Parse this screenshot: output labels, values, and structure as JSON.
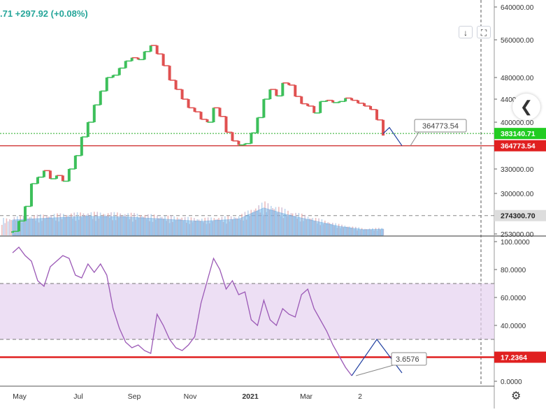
{
  "header": {
    "price_change": ".71  +297.92 (+0.08%)"
  },
  "toolbar": {
    "download_icon": "download-arrow-icon",
    "fullscreen_icon": "fullscreen-icon",
    "download_glyph": "↓",
    "fullscreen_glyph": "⛶"
  },
  "side_nav": {
    "icon": "chevron-left-icon",
    "glyph": "❮"
  },
  "footer": {
    "settings_icon": "gear-icon",
    "settings_glyph": "⚙"
  },
  "chart_data": [
    {
      "type": "line",
      "panel": "price",
      "price_axis_ticks": [
        "640000.00",
        "560000.00",
        "480000.00",
        "440000.00",
        "400000.00",
        "330000.00",
        "300000.00",
        "253000.00"
      ],
      "price_axis_tick_values": [
        640000,
        560000,
        480000,
        440000,
        400000,
        330000,
        300000,
        253000
      ],
      "time_axis_ticks": [
        "May",
        "Jul",
        "Sep",
        "Nov",
        "2021",
        "Mar",
        "2"
      ],
      "price_labels": [
        {
          "text": "383140.71",
          "value": 383140.71,
          "color": "#22cc22"
        },
        {
          "text": "364773.54",
          "value": 364773.54,
          "color": "#e02020"
        },
        {
          "text": "274300.70",
          "value": 274300.7,
          "color": "#dddddd"
        }
      ],
      "callout": {
        "text": "364773.54"
      },
      "horizontal_lines": [
        {
          "value": 383140.71,
          "style": "dotted",
          "color": "#22aa22"
        },
        {
          "value": 364773.54,
          "style": "solid",
          "color": "#cc2222"
        },
        {
          "value": 274300.7,
          "style": "dashed",
          "color": "#888888"
        }
      ],
      "candles": [
        {
          "t": 0,
          "v": 256000
        },
        {
          "t": 1,
          "v": 268000
        },
        {
          "t": 2,
          "v": 285000
        },
        {
          "t": 3,
          "v": 312000
        },
        {
          "t": 4,
          "v": 320000
        },
        {
          "t": 5,
          "v": 328000
        },
        {
          "t": 6,
          "v": 318000
        },
        {
          "t": 7,
          "v": 322000
        },
        {
          "t": 8,
          "v": 315000
        },
        {
          "t": 9,
          "v": 330000
        },
        {
          "t": 10,
          "v": 350000
        },
        {
          "t": 11,
          "v": 378000
        },
        {
          "t": 12,
          "v": 400000
        },
        {
          "t": 13,
          "v": 430000
        },
        {
          "t": 14,
          "v": 455000
        },
        {
          "t": 15,
          "v": 480000
        },
        {
          "t": 16,
          "v": 485000
        },
        {
          "t": 17,
          "v": 500000
        },
        {
          "t": 18,
          "v": 515000
        },
        {
          "t": 19,
          "v": 522000
        },
        {
          "t": 20,
          "v": 518000
        },
        {
          "t": 21,
          "v": 535000
        },
        {
          "t": 22,
          "v": 548000
        },
        {
          "t": 23,
          "v": 530000
        },
        {
          "t": 24,
          "v": 505000
        },
        {
          "t": 25,
          "v": 475000
        },
        {
          "t": 26,
          "v": 458000
        },
        {
          "t": 27,
          "v": 440000
        },
        {
          "t": 28,
          "v": 425000
        },
        {
          "t": 29,
          "v": 418000
        },
        {
          "t": 30,
          "v": 405000
        },
        {
          "t": 31,
          "v": 400000
        },
        {
          "t": 32,
          "v": 425000
        },
        {
          "t": 33,
          "v": 410000
        },
        {
          "t": 34,
          "v": 385000
        },
        {
          "t": 35,
          "v": 372000
        },
        {
          "t": 36,
          "v": 366000
        },
        {
          "t": 37,
          "v": 368000
        },
        {
          "t": 38,
          "v": 384000
        },
        {
          "t": 39,
          "v": 408000
        },
        {
          "t": 40,
          "v": 440000
        },
        {
          "t": 41,
          "v": 458000
        },
        {
          "t": 42,
          "v": 446000
        },
        {
          "t": 43,
          "v": 470000
        },
        {
          "t": 44,
          "v": 466000
        },
        {
          "t": 45,
          "v": 445000
        },
        {
          "t": 46,
          "v": 432000
        },
        {
          "t": 47,
          "v": 428000
        },
        {
          "t": 48,
          "v": 416000
        },
        {
          "t": 49,
          "v": 436000
        },
        {
          "t": 50,
          "v": 438000
        },
        {
          "t": 51,
          "v": 434000
        },
        {
          "t": 52,
          "v": 436000
        },
        {
          "t": 53,
          "v": 442000
        },
        {
          "t": 54,
          "v": 438000
        },
        {
          "t": 55,
          "v": 433000
        },
        {
          "t": 56,
          "v": 428000
        },
        {
          "t": 57,
          "v": 422000
        },
        {
          "t": 58,
          "v": 404000
        },
        {
          "t": 59,
          "v": 380000
        }
      ],
      "projection": [
        {
          "t": 59,
          "v": 383000
        },
        {
          "t": 60,
          "v": 392000
        },
        {
          "t": 62,
          "v": 364773.54
        }
      ],
      "volume_ma": [
        {
          "t": 0,
          "v": 0.55
        },
        {
          "t": 6,
          "v": 0.62
        },
        {
          "t": 12,
          "v": 0.68
        },
        {
          "t": 18,
          "v": 0.66
        },
        {
          "t": 24,
          "v": 0.58
        },
        {
          "t": 30,
          "v": 0.5
        },
        {
          "t": 36,
          "v": 0.58
        },
        {
          "t": 40,
          "v": 0.98
        },
        {
          "t": 44,
          "v": 0.72
        },
        {
          "t": 48,
          "v": 0.52
        },
        {
          "t": 52,
          "v": 0.32
        },
        {
          "t": 56,
          "v": 0.2
        },
        {
          "t": 59,
          "v": 0.22
        }
      ]
    },
    {
      "type": "line",
      "panel": "oscillator",
      "osc_axis_ticks": [
        "100.0000",
        "80.0000",
        "60.0000",
        "40.0000",
        "0.0000"
      ],
      "osc_axis_tick_values": [
        100,
        80,
        60,
        40,
        0
      ],
      "band": {
        "upper": 70,
        "lower": 30
      },
      "level_line": {
        "value": 17.2364,
        "text": "17.2364",
        "color": "#e02020"
      },
      "callout": {
        "text": "3.6576"
      },
      "series": [
        {
          "t": 0,
          "v": 92
        },
        {
          "t": 1,
          "v": 96
        },
        {
          "t": 2,
          "v": 90
        },
        {
          "t": 3,
          "v": 86
        },
        {
          "t": 4,
          "v": 72
        },
        {
          "t": 5,
          "v": 68
        },
        {
          "t": 6,
          "v": 82
        },
        {
          "t": 7,
          "v": 86
        },
        {
          "t": 8,
          "v": 90
        },
        {
          "t": 9,
          "v": 88
        },
        {
          "t": 10,
          "v": 76
        },
        {
          "t": 11,
          "v": 74
        },
        {
          "t": 12,
          "v": 84
        },
        {
          "t": 13,
          "v": 78
        },
        {
          "t": 14,
          "v": 84
        },
        {
          "t": 15,
          "v": 76
        },
        {
          "t": 16,
          "v": 52
        },
        {
          "t": 17,
          "v": 38
        },
        {
          "t": 18,
          "v": 28
        },
        {
          "t": 19,
          "v": 24
        },
        {
          "t": 20,
          "v": 26
        },
        {
          "t": 21,
          "v": 22
        },
        {
          "t": 22,
          "v": 20
        },
        {
          "t": 23,
          "v": 48
        },
        {
          "t": 24,
          "v": 40
        },
        {
          "t": 25,
          "v": 30
        },
        {
          "t": 26,
          "v": 24
        },
        {
          "t": 27,
          "v": 22
        },
        {
          "t": 28,
          "v": 26
        },
        {
          "t": 29,
          "v": 32
        },
        {
          "t": 30,
          "v": 56
        },
        {
          "t": 31,
          "v": 72
        },
        {
          "t": 32,
          "v": 88
        },
        {
          "t": 33,
          "v": 80
        },
        {
          "t": 34,
          "v": 66
        },
        {
          "t": 35,
          "v": 72
        },
        {
          "t": 36,
          "v": 62
        },
        {
          "t": 37,
          "v": 64
        },
        {
          "t": 38,
          "v": 44
        },
        {
          "t": 39,
          "v": 40
        },
        {
          "t": 40,
          "v": 58
        },
        {
          "t": 41,
          "v": 44
        },
        {
          "t": 42,
          "v": 40
        },
        {
          "t": 43,
          "v": 52
        },
        {
          "t": 44,
          "v": 48
        },
        {
          "t": 45,
          "v": 46
        },
        {
          "t": 46,
          "v": 62
        },
        {
          "t": 47,
          "v": 66
        },
        {
          "t": 48,
          "v": 52
        },
        {
          "t": 49,
          "v": 44
        },
        {
          "t": 50,
          "v": 36
        },
        {
          "t": 51,
          "v": 26
        },
        {
          "t": 52,
          "v": 18
        },
        {
          "t": 53,
          "v": 10
        },
        {
          "t": 54,
          "v": 4
        }
      ],
      "projection": [
        {
          "t": 54,
          "v": 4
        },
        {
          "t": 58,
          "v": 30
        },
        {
          "t": 62,
          "v": 6
        }
      ]
    }
  ]
}
